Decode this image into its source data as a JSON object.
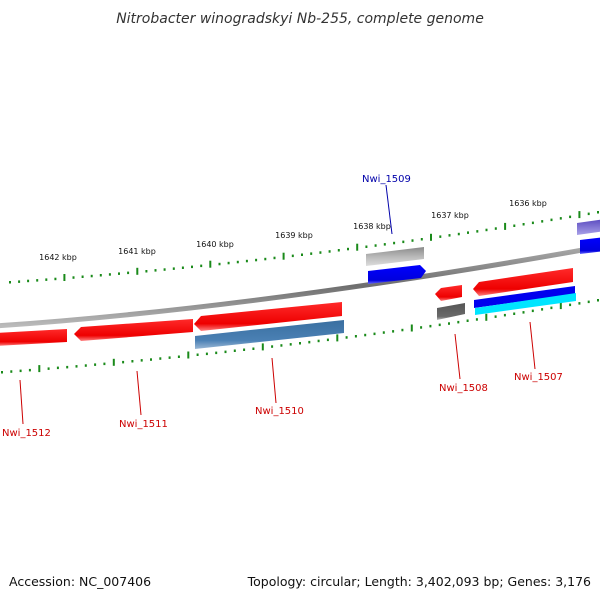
{
  "title": "Nitrobacter winogradskyi Nb-255, complete genome",
  "footer": {
    "accession": "Accession: NC_007406",
    "summary": "Topology: circular; Length: 3,402,093 bp; Genes: 3,176"
  },
  "kbp_ticks": [
    {
      "label": "1642 kbp"
    },
    {
      "label": "1641 kbp"
    },
    {
      "label": "1640 kbp"
    },
    {
      "label": "1639 kbp"
    },
    {
      "label": "1638 kbp"
    },
    {
      "label": "1637 kbp"
    },
    {
      "label": "1636 kbp"
    }
  ],
  "gene_labels": [
    {
      "name": "Nwi_1512",
      "color": "#cc0000"
    },
    {
      "name": "Nwi_1511",
      "color": "#cc0000"
    },
    {
      "name": "Nwi_1510",
      "color": "#cc0000"
    },
    {
      "name": "Nwi_1509",
      "color": "#0000aa"
    },
    {
      "name": "Nwi_1508",
      "color": "#cc0000"
    },
    {
      "name": "Nwi_1507",
      "color": "#cc0000"
    }
  ],
  "colors": {
    "backbone": "#7a7a7a",
    "cds_red": "#ff0000",
    "cds_blue": "#0000ee",
    "steel_blue": "#4a7fb0",
    "gray_feature": "#aaaaaa",
    "dark_gray": "#666666",
    "cyan": "#00e5ff",
    "purple": "#6a5acd",
    "tick_green": "#1a8a1a"
  }
}
